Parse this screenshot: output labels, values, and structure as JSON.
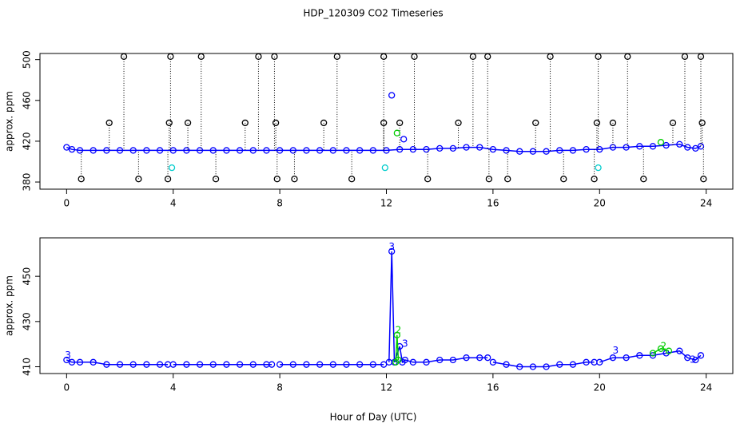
{
  "chart_data": [
    {
      "type": "scatter",
      "title": "HDP_120309  CO2 Timeseries",
      "ylabel": "approx. ppm",
      "xlim": [
        -1,
        25
      ],
      "xticks": [
        0,
        4,
        8,
        12,
        16,
        20,
        24
      ],
      "ylim": [
        373,
        506
      ],
      "yticks": [
        380,
        420,
        460,
        500
      ],
      "series": [
        {
          "color": "#0000ff",
          "line": true,
          "stems": false,
          "x": [
            0,
            0.2,
            0.5,
            1,
            1.5,
            2,
            2.5,
            3,
            3.5,
            4,
            4.5,
            5,
            5.5,
            6,
            6.5,
            7,
            7.5,
            8,
            8.5,
            9,
            9.5,
            10,
            10.5,
            11,
            11.5,
            12,
            12.5,
            13,
            13.5,
            14,
            14.5,
            15,
            15.5,
            16,
            16.5,
            17,
            17.5,
            18,
            18.5,
            19,
            19.5,
            20,
            20.5,
            21,
            21.5,
            22,
            22.5,
            23,
            23.3,
            23.6,
            23.8
          ],
          "values": [
            414,
            412,
            411,
            411,
            411,
            411,
            411,
            411,
            411,
            411,
            411,
            411,
            411,
            411,
            411,
            411,
            411,
            411,
            411,
            411,
            411,
            411,
            411,
            411,
            411,
            411,
            412,
            412,
            412,
            413,
            413,
            414,
            414,
            412,
            411,
            410,
            410,
            410,
            411,
            411,
            412,
            412,
            414,
            414,
            415,
            415,
            416,
            417,
            414,
            413,
            415
          ]
        },
        {
          "color": "#000000",
          "line": false,
          "stems": true,
          "x": [
            2.15,
            3.9,
            5.05,
            7.2,
            7.8,
            10.15,
            11.9,
            13.05,
            15.25,
            15.8,
            18.15,
            19.95,
            21.05,
            23.2,
            23.8,
            0.55,
            2.7,
            3.8,
            5.6,
            7.9,
            8.55,
            10.7,
            13.55,
            15.85,
            16.55,
            18.65,
            19.8,
            21.65,
            23.9,
            1.6,
            3.85,
            4.55,
            6.7,
            7.85,
            9.65,
            11.9,
            12.5,
            14.7,
            17.6,
            19.9,
            20.5,
            22.75,
            23.85
          ],
          "values": [
            503,
            503,
            503,
            503,
            503,
            503,
            503,
            503,
            503,
            503,
            503,
            503,
            503,
            503,
            503,
            383,
            383,
            383,
            383,
            383,
            383,
            383,
            383,
            383,
            383,
            383,
            383,
            383,
            383,
            438,
            438,
            438,
            438,
            438,
            438,
            438,
            438,
            438,
            438,
            438,
            438,
            438,
            438
          ]
        },
        {
          "color": "#00cccc",
          "line": false,
          "stems": false,
          "x": [
            3.95,
            11.95,
            19.95
          ],
          "values": [
            394,
            394,
            394
          ]
        },
        {
          "color": "#0000ff",
          "line": false,
          "stems": false,
          "x": [
            12.2,
            12.65
          ],
          "values": [
            465,
            422
          ]
        },
        {
          "color": "#00cc00",
          "line": false,
          "stems": false,
          "x": [
            12.4,
            22.3
          ],
          "values": [
            428,
            419
          ]
        }
      ]
    },
    {
      "type": "line",
      "ylabel": "approx. ppm",
      "xlabel": "Hour of Day (UTC)",
      "xlim": [
        -1,
        25
      ],
      "xticks": [
        0,
        4,
        8,
        12,
        16,
        20,
        24
      ],
      "ylim": [
        407,
        467
      ],
      "yticks": [
        410,
        430,
        450
      ],
      "series": [
        {
          "color": "#0000ff",
          "line": true,
          "stems": false,
          "x": [
            0,
            0.2,
            0.5,
            1,
            1.5,
            2,
            2.5,
            3,
            3.5,
            3.8,
            3.85,
            4,
            4.5,
            5,
            5.5,
            6,
            6.5,
            7,
            7.5,
            7.7,
            7.8,
            8,
            8.5,
            9,
            9.5,
            10,
            10.5,
            11,
            11.5,
            11.9,
            12.0,
            12.1,
            12.2,
            12.3,
            12.5,
            12.6,
            12.7,
            13,
            13.5,
            14,
            14.5,
            15,
            15.5,
            15.8,
            15.9,
            16,
            16.5,
            17,
            17.5,
            18,
            18.5,
            19,
            19.5,
            19.8,
            19.9,
            20,
            20.5,
            21,
            21.5,
            22,
            22.5,
            23,
            23.3,
            23.6,
            23.8
          ],
          "values": [
            413,
            412,
            412,
            412,
            411,
            411,
            411,
            411,
            411,
            411,
            null,
            411,
            411,
            411,
            411,
            411,
            411,
            411,
            411,
            411,
            null,
            411,
            411,
            411,
            411,
            411,
            411,
            411,
            411,
            411,
            null,
            412,
            461,
            412,
            419,
            412,
            413,
            412,
            412,
            413,
            413,
            414,
            414,
            414,
            null,
            412,
            411,
            410,
            410,
            410,
            411,
            411,
            412,
            412,
            null,
            412,
            414,
            414,
            415,
            415,
            416,
            417,
            414,
            413,
            415
          ]
        },
        {
          "color": "#00cc00",
          "line": true,
          "stems": false,
          "x": [
            12.35,
            12.4,
            12.45,
            17,
            22,
            22.3,
            22.6
          ],
          "values": [
            412,
            424,
            413,
            null,
            416,
            418,
            417
          ]
        }
      ],
      "annotations": [
        {
          "x": 0.05,
          "y": 415,
          "label": "3",
          "color": "#0000ff"
        },
        {
          "x": 12.2,
          "y": 463,
          "label": "3",
          "color": "#0000ff"
        },
        {
          "x": 12.45,
          "y": 426,
          "label": "2",
          "color": "#00cc00"
        },
        {
          "x": 12.7,
          "y": 420,
          "label": "3",
          "color": "#0000ff"
        },
        {
          "x": 20.6,
          "y": 417,
          "label": "3",
          "color": "#0000ff"
        },
        {
          "x": 22.4,
          "y": 419,
          "label": "2",
          "color": "#00cc00"
        },
        {
          "x": 23.5,
          "y": 413,
          "label": "3",
          "color": "#0000ff"
        }
      ]
    }
  ]
}
